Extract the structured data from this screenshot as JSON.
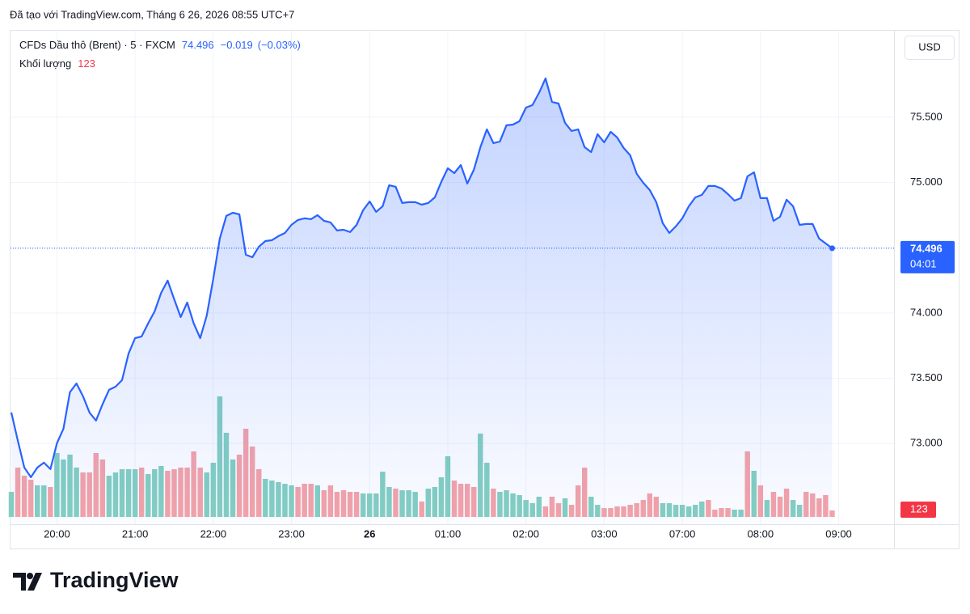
{
  "header": "Đã tạo với TradingView.com, Tháng 6 26, 2026 08:55 UTC+7",
  "brand": "TradingView",
  "chart_data": {
    "type": "line",
    "currency": "USD",
    "countdown": "04:01",
    "change": {
      "value": -0.019,
      "label": "−0.019"
    },
    "change_percent": {
      "value": -0.03,
      "label": "(−0.03%)"
    },
    "grid": true,
    "x": [
      0,
      1,
      2,
      3,
      4,
      5,
      6,
      7,
      8,
      9,
      10,
      11,
      12,
      13,
      14,
      15,
      16,
      17,
      18,
      19,
      20,
      21,
      22,
      23,
      24,
      25,
      26,
      27,
      28,
      29,
      30,
      31,
      32,
      33,
      34,
      35,
      36,
      37,
      38,
      39,
      40,
      41,
      42,
      43,
      44,
      45,
      46,
      47,
      48,
      49,
      50,
      51,
      52,
      53,
      54,
      55,
      56,
      57,
      58,
      59,
      60,
      61,
      62,
      63,
      64,
      65,
      66,
      67,
      68,
      69,
      70,
      71,
      72,
      73,
      74,
      75,
      76,
      77,
      78,
      79,
      80,
      81,
      82,
      83,
      84,
      85,
      86,
      87,
      88,
      89,
      90,
      91,
      92,
      93,
      94,
      95,
      96,
      97,
      98,
      99,
      100,
      101,
      102,
      103,
      104,
      105,
      106,
      107,
      108,
      109,
      110,
      111,
      112,
      113,
      114,
      115,
      116,
      117,
      118,
      119,
      120,
      121,
      122,
      123,
      124,
      125,
      126
    ],
    "xlim": [
      0,
      135
    ],
    "xticks": [
      {
        "value": 7,
        "label": "20:00"
      },
      {
        "value": 19,
        "label": "21:00"
      },
      {
        "value": 31,
        "label": "22:00"
      },
      {
        "value": 43,
        "label": "23:00"
      },
      {
        "value": 55,
        "label": "26"
      },
      {
        "value": 67,
        "label": "01:00"
      },
      {
        "value": 79,
        "label": "02:00"
      },
      {
        "value": 91,
        "label": "03:00"
      },
      {
        "value": 103,
        "label": "07:00"
      },
      {
        "value": 115,
        "label": "08:00"
      },
      {
        "value": 127,
        "label": "09:00"
      }
    ],
    "ylim": [
      72.381,
      76.163
    ],
    "yticks": [
      {
        "value": 73,
        "label": "73.000"
      },
      {
        "value": 73.5,
        "label": "73.500"
      },
      {
        "value": 74,
        "label": "74.000"
      },
      {
        "value": 74.5,
        "label": "74.500"
      },
      {
        "value": 75,
        "label": "75.000"
      },
      {
        "value": 75.5,
        "label": "75.500"
      }
    ],
    "y2lim": [
      0,
      9255
    ],
    "series": [
      {
        "name": "CFDs Dầu thô (Brent) · 5 · FXCM",
        "color": "#2962ff",
        "values": [
          73.237,
          73.02,
          72.815,
          72.741,
          72.815,
          72.853,
          72.803,
          73.001,
          73.113,
          73.392,
          73.46,
          73.361,
          73.237,
          73.175,
          73.299,
          73.411,
          73.435,
          73.485,
          73.69,
          73.807,
          73.82,
          73.919,
          74.012,
          74.155,
          74.248,
          74.105,
          73.969,
          74.08,
          73.919,
          73.807,
          73.981,
          74.26,
          74.57,
          74.744,
          74.768,
          74.756,
          74.446,
          74.427,
          74.508,
          74.551,
          74.558,
          74.589,
          74.613,
          74.675,
          74.713,
          74.725,
          74.719,
          74.75,
          74.706,
          74.694,
          74.632,
          74.638,
          74.62,
          74.675,
          74.787,
          74.855,
          74.775,
          74.818,
          74.979,
          74.967,
          74.843,
          74.849,
          74.849,
          74.83,
          74.843,
          74.886,
          75.004,
          75.109,
          75.072,
          75.134,
          74.992,
          75.097,
          75.271,
          75.407,
          75.302,
          75.314,
          75.438,
          75.444,
          75.469,
          75.574,
          75.593,
          75.686,
          75.798,
          75.618,
          75.605,
          75.457,
          75.395,
          75.407,
          75.271,
          75.233,
          75.37,
          75.308,
          75.388,
          75.345,
          75.264,
          75.209,
          75.066,
          74.998,
          74.942,
          74.849,
          74.688,
          74.613,
          74.663,
          74.725,
          74.818,
          74.886,
          74.905,
          74.973,
          74.973,
          74.954,
          74.911,
          74.861,
          74.88,
          75.047,
          75.078,
          74.88,
          74.88,
          74.706,
          74.737,
          74.868,
          74.818,
          74.675,
          74.682,
          74.682,
          74.57,
          74.533,
          74.496
        ]
      },
      {
        "name": "Khối lượng",
        "axis": "y2",
        "type": "bar",
        "color": "#f23645",
        "values": [
          477,
          939,
          785,
          708,
          601,
          601,
          570,
          1217,
          1093,
          1186,
          939,
          847,
          847,
          1217,
          1093,
          785,
          847,
          909,
          909,
          909,
          939,
          816,
          909,
          970,
          878,
          909,
          939,
          939,
          1247,
          939,
          847,
          1032,
          2295,
          1602,
          1093,
          1186,
          1679,
          1340,
          909,
          724,
          693,
          662,
          631,
          601,
          570,
          631,
          631,
          601,
          508,
          601,
          477,
          508,
          477,
          477,
          447,
          447,
          447,
          862,
          570,
          539,
          508,
          508,
          477,
          293,
          539,
          570,
          755,
          1155,
          693,
          631,
          631,
          570,
          1586,
          1032,
          539,
          477,
          508,
          447,
          416,
          323,
          262,
          385,
          200,
          385,
          262,
          354,
          231,
          601,
          939,
          385,
          231,
          169,
          169,
          200,
          200,
          231,
          262,
          323,
          447,
          385,
          262,
          262,
          231,
          231,
          200,
          231,
          293,
          323,
          139,
          169,
          169,
          139,
          139,
          1247,
          878,
          601,
          323,
          477,
          385,
          539,
          323,
          231,
          477,
          447,
          354,
          416,
          123
        ],
        "colors": [
          "#84cfc1",
          "#f5a3a8",
          "#f5a3a8",
          "#f5a3a8",
          "#84cfc1",
          "#84cfc1",
          "#f5a3a8",
          "#84cfc1",
          "#84cfc1",
          "#84cfc1",
          "#84cfc1",
          "#f5a3a8",
          "#f5a3a8",
          "#f5a3a8",
          "#f5a3a8",
          "#84cfc1",
          "#84cfc1",
          "#84cfc1",
          "#84cfc1",
          "#84cfc1",
          "#f5a3a8",
          "#84cfc1",
          "#84cfc1",
          "#84cfc1",
          "#f5a3a8",
          "#f5a3a8",
          "#f5a3a8",
          "#f5a3a8",
          "#f5a3a8",
          "#f5a3a8",
          "#84cfc1",
          "#84cfc1",
          "#84cfc1",
          "#84cfc1",
          "#84cfc1",
          "#f5a3a8",
          "#f5a3a8",
          "#f5a3a8",
          "#f5a3a8",
          "#84cfc1",
          "#84cfc1",
          "#84cfc1",
          "#84cfc1",
          "#84cfc1",
          "#f5a3a8",
          "#f5a3a8",
          "#f5a3a8",
          "#84cfc1",
          "#f5a3a8",
          "#f5a3a8",
          "#f5a3a8",
          "#f5a3a8",
          "#f5a3a8",
          "#f5a3a8",
          "#84cfc1",
          "#84cfc1",
          "#84cfc1",
          "#84cfc1",
          "#84cfc1",
          "#f5a3a8",
          "#84cfc1",
          "#84cfc1",
          "#84cfc1",
          "#f5a3a8",
          "#84cfc1",
          "#84cfc1",
          "#84cfc1",
          "#84cfc1",
          "#f5a3a8",
          "#f5a3a8",
          "#f5a3a8",
          "#f5a3a8",
          "#84cfc1",
          "#84cfc1",
          "#f5a3a8",
          "#84cfc1",
          "#84cfc1",
          "#84cfc1",
          "#84cfc1",
          "#84cfc1",
          "#84cfc1",
          "#84cfc1",
          "#f5a3a8",
          "#f5a3a8",
          "#f5a3a8",
          "#84cfc1",
          "#f5a3a8",
          "#f5a3a8",
          "#f5a3a8",
          "#84cfc1",
          "#84cfc1",
          "#f5a3a8",
          "#f5a3a8",
          "#f5a3a8",
          "#f5a3a8",
          "#f5a3a8",
          "#f5a3a8",
          "#f5a3a8",
          "#f5a3a8",
          "#f5a3a8",
          "#84cfc1",
          "#84cfc1",
          "#84cfc1",
          "#84cfc1",
          "#84cfc1",
          "#84cfc1",
          "#84cfc1",
          "#f5a3a8",
          "#f5a3a8",
          "#f5a3a8",
          "#f5a3a8",
          "#84cfc1",
          "#84cfc1",
          "#f5a3a8",
          "#84cfc1",
          "#f5a3a8",
          "#84cfc1",
          "#f5a3a8",
          "#f5a3a8",
          "#f5a3a8",
          "#84cfc1",
          "#84cfc1",
          "#f5a3a8",
          "#f5a3a8",
          "#f5a3a8",
          "#f5a3a8",
          "#f5a3a8"
        ]
      }
    ]
  }
}
